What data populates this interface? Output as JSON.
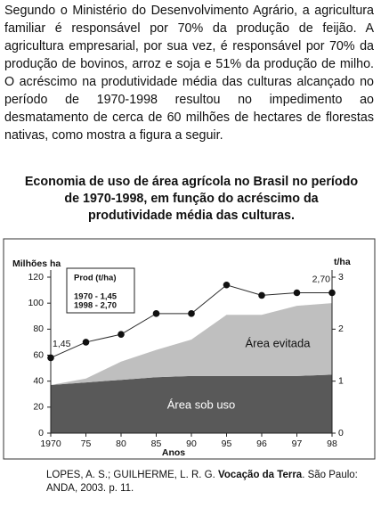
{
  "text": "Segundo o Ministério do Desenvolvimento Agrário, a agricultura familiar é responsável por 70% da produção de feijão. A agricultura empresarial, por sua vez, é responsável por 70% da produção de bovinos, arroz e soja e 51% da produção de milho. O acréscimo na produtividade média das culturas alcançado no período de 1970-1998 resultou no impedimento ao desmatamento de cerca de 60 milhões de hectares de florestas nativas, como mostra a figura a seguir.",
  "chart_data": {
    "type": "area",
    "title": "Economia de uso de área agrícola no Brasil no período de 1970-1998, em função do acréscimo da produtividade média das culturas.",
    "categories": [
      "1970",
      "75",
      "80",
      "85",
      "90",
      "95",
      "96",
      "97",
      "98"
    ],
    "xlabel": "Anos",
    "ylabel": "Milhões ha",
    "y2label": "t/ha",
    "ylim": [
      0,
      120
    ],
    "yticks": [
      0,
      20,
      40,
      60,
      80,
      100,
      120
    ],
    "y2lim": [
      0,
      3
    ],
    "y2ticks": [
      0,
      1,
      2,
      3
    ],
    "series": [
      {
        "name": "Área sob uso",
        "color": "#595959",
        "values": [
          37,
          39,
          41,
          43,
          44,
          44,
          44,
          44,
          45
        ]
      },
      {
        "name": "Área evitada",
        "color": "#bfbfbf",
        "values": [
          0,
          3,
          14,
          21,
          28,
          47,
          47,
          54,
          55
        ]
      },
      {
        "name": "Prod (t/ha)",
        "type": "line",
        "axis": "y2",
        "color": "#2a2a2a",
        "values": [
          1.45,
          1.75,
          1.9,
          2.3,
          2.3,
          2.85,
          2.65,
          2.7,
          2.7
        ],
        "value_labels": [
          "1,45",
          null,
          null,
          null,
          null,
          null,
          null,
          null,
          "2,70"
        ]
      }
    ],
    "annotations": [
      "1970 - 1,45",
      "1998 - 2,70"
    ]
  },
  "caption": {
    "authors": "LOPES, A. S.; GUILHERME, L. R. G.",
    "title": "Vocação da Terra",
    "publication": ". São Paulo: ANDA, 2003. p. 11."
  }
}
